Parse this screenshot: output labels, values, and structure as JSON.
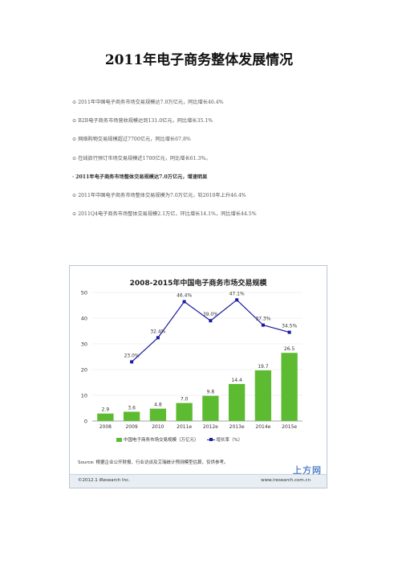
{
  "title": "2011年电子商务整体发展情况",
  "bullets": [
    {
      "mark": "⊙",
      "text": "2011年中国电子商务市场交易规模达7.0万亿元，同比增长46.4%",
      "bold": false
    },
    {
      "mark": "⊙",
      "text": "B2B电子商务市场营收规模达到131.0亿元，同比增长35.1%",
      "bold": false
    },
    {
      "mark": "⊙",
      "text": "网络购物交易规模超过7700亿元，同比增长67.8%",
      "bold": false
    },
    {
      "mark": "⊙",
      "text": "在线旅行预订市场交易规模近1700亿元，同比增长61.3%。",
      "bold": false
    },
    {
      "mark": "·",
      "text": "2011年电子商务市场整体交易规模达7.0万亿元，增速明显",
      "bold": true
    },
    {
      "mark": "⊙",
      "text": "2011年中国电子商务市场整体交易规模为7.0万亿元，较2010年上升46.4%",
      "bold": false
    },
    {
      "mark": "⊙",
      "text": "2011Q4电子商务市场整体交易规模2.1万亿，环比增长14.1%，同比增长44.5%",
      "bold": false
    }
  ],
  "chart": {
    "footer": {
      "source": "Source: 根据企业公开财报、行业访谈及艾瑞统计预测模型估算，仅供参考。",
      "copyright": "©2012.1 iResearch Inc.",
      "site": "www.iresearch.com.cn",
      "watermark": "上方网"
    }
  },
  "chart_data": {
    "type": "bar",
    "title": "2008-2015年中国电子商务市场交易规模",
    "categories": [
      "2008",
      "2009",
      "2010",
      "2011e",
      "2012e",
      "2013e",
      "2014e",
      "2015e"
    ],
    "series": [
      {
        "name": "中国电子商务市场交易规模（万亿元）",
        "type": "bar",
        "values": [
          2.9,
          3.6,
          4.8,
          7.0,
          9.8,
          14.4,
          19.7,
          26.5
        ],
        "labels": [
          "2.9",
          "3.6",
          "4.8",
          "7.0",
          "9.8",
          "14.4",
          "19.7",
          "26.5"
        ]
      },
      {
        "name": "增长率（%）",
        "type": "line",
        "values": [
          null,
          23.0,
          32.4,
          46.4,
          39.0,
          47.1,
          37.3,
          34.5
        ],
        "labels": [
          "",
          "23.0%",
          "32.4%",
          "46.4%",
          "39.0%",
          "47.1%",
          "37.3%",
          "34.5%"
        ]
      }
    ],
    "ylim": [
      0,
      50
    ],
    "yticks": [
      0,
      10,
      20,
      30,
      40,
      50
    ],
    "grid": true,
    "legend": "bottom",
    "colors": {
      "bar": "#5dbb32",
      "line": "#1a1aa0"
    }
  }
}
